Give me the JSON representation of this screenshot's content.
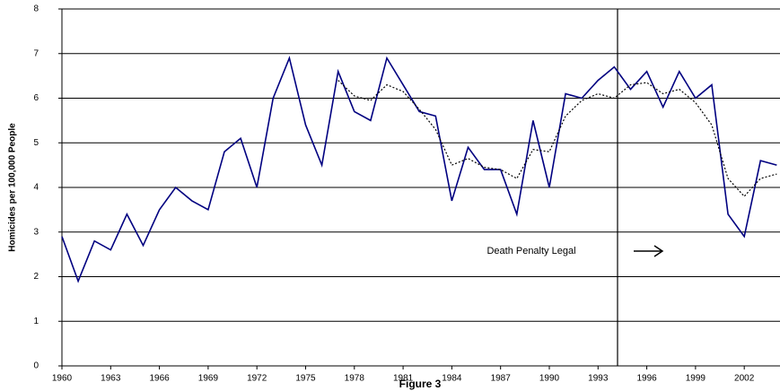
{
  "chart_data": {
    "type": "line",
    "title": "Figure 3",
    "y_label": "Homicides per 100,000 People",
    "x": [
      1960,
      1961,
      1962,
      1963,
      1964,
      1965,
      1966,
      1967,
      1968,
      1969,
      1970,
      1971,
      1972,
      1973,
      1974,
      1975,
      1976,
      1977,
      1978,
      1979,
      1980,
      1981,
      1982,
      1983,
      1984,
      1985,
      1986,
      1987,
      1988,
      1989,
      1990,
      1991,
      1992,
      1993,
      1994,
      1995,
      1996,
      1997,
      1998,
      1999,
      2000,
      2001,
      2002,
      2003,
      2004
    ],
    "series": [
      {
        "color": "#000080",
        "style": "solid",
        "values": [
          2.9,
          1.9,
          2.8,
          2.6,
          3.4,
          2.7,
          3.5,
          4.0,
          3.7,
          3.5,
          4.8,
          5.1,
          4.0,
          6.0,
          6.9,
          5.4,
          4.5,
          6.6,
          5.7,
          5.5,
          6.9,
          6.3,
          5.7,
          5.6,
          3.7,
          4.9,
          4.4,
          4.4,
          3.4,
          5.5,
          4.0,
          6.1,
          6.0,
          6.4,
          6.7,
          6.2,
          6.6,
          5.8,
          6.6,
          6.0,
          6.3,
          3.4,
          2.9,
          4.6,
          4.5
        ]
      },
      {
        "color": "#000000",
        "style": "dotted",
        "values": [
          null,
          null,
          null,
          null,
          null,
          null,
          null,
          null,
          null,
          null,
          null,
          null,
          null,
          null,
          null,
          null,
          null,
          6.4,
          6.05,
          5.95,
          6.3,
          6.15,
          5.75,
          5.3,
          4.5,
          4.65,
          4.45,
          4.4,
          4.2,
          4.85,
          4.8,
          5.6,
          5.95,
          6.1,
          6.0,
          6.3,
          6.35,
          6.1,
          6.2,
          5.9,
          5.4,
          4.2,
          3.8,
          4.2,
          4.3
        ]
      }
    ],
    "xlim": [
      1960,
      2004.2
    ],
    "xticks": [
      1960,
      1963,
      1966,
      1969,
      1972,
      1975,
      1978,
      1981,
      1984,
      1987,
      1990,
      1993,
      1996,
      1999,
      2002
    ],
    "ylim": [
      0,
      8
    ],
    "yticks": [
      0,
      1,
      2,
      3,
      4,
      5,
      6,
      7,
      8
    ],
    "grid": true,
    "annotation": {
      "text": "Death Penalty Legal",
      "x": 1994.2
    }
  }
}
